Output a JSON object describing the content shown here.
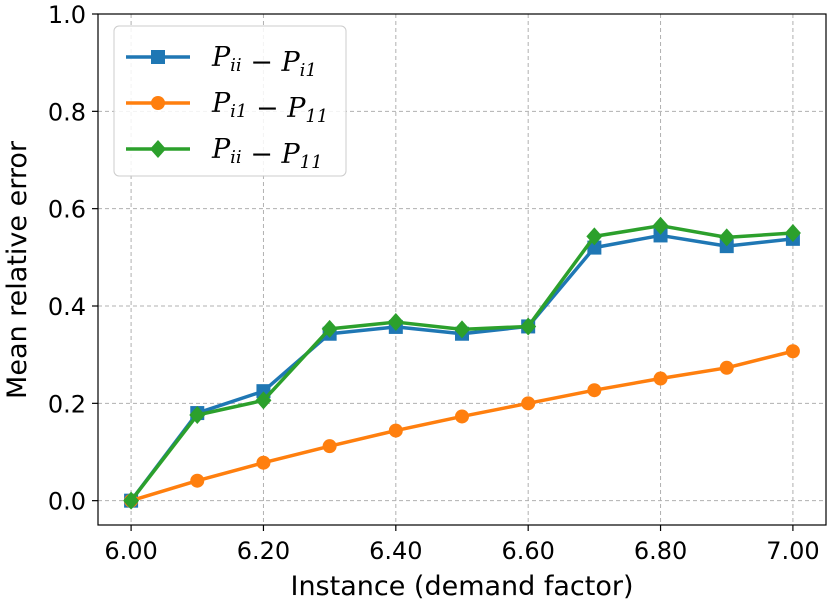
{
  "chart_data": {
    "type": "line",
    "xlabel": "Instance (demand factor)",
    "ylabel": "Mean relative error",
    "xlim": [
      5.95,
      7.05
    ],
    "ylim": [
      -0.05,
      1.0
    ],
    "x_ticks": [
      "6.00",
      "6.20",
      "6.40",
      "6.60",
      "6.80",
      "7.00"
    ],
    "y_ticks": [
      "0.0",
      "0.2",
      "0.4",
      "0.6",
      "0.8",
      "1.0"
    ],
    "grid": true,
    "legend_position": "top-left",
    "x": [
      6.0,
      6.1,
      6.2,
      6.3,
      6.4,
      6.5,
      6.6,
      6.7,
      6.8,
      6.9,
      7.0
    ],
    "series": [
      {
        "name": "P_ii − P_i1",
        "legend": {
          "base1": "P",
          "sub1": "ii",
          "op": "−",
          "base2": "P",
          "sub2": "i1"
        },
        "color": "#1f77b4",
        "marker": "square",
        "values": [
          0.0,
          0.18,
          0.225,
          0.343,
          0.357,
          0.343,
          0.358,
          0.52,
          0.545,
          0.523,
          0.538
        ]
      },
      {
        "name": "P_i1 − P_11",
        "legend": {
          "base1": "P",
          "sub1": "i1",
          "op": "−",
          "base2": "P",
          "sub2": "11"
        },
        "color": "#ff7f0e",
        "marker": "circle",
        "values": [
          0.0,
          0.041,
          0.078,
          0.112,
          0.144,
          0.173,
          0.2,
          0.227,
          0.251,
          0.273,
          0.307
        ]
      },
      {
        "name": "P_ii − P_11",
        "legend": {
          "base1": "P",
          "sub1": "ii",
          "op": "−",
          "base2": "P",
          "sub2": "11"
        },
        "color": "#2ca02c",
        "marker": "diamond",
        "values": [
          0.0,
          0.176,
          0.206,
          0.353,
          0.367,
          0.352,
          0.358,
          0.543,
          0.565,
          0.541,
          0.55
        ]
      }
    ]
  }
}
